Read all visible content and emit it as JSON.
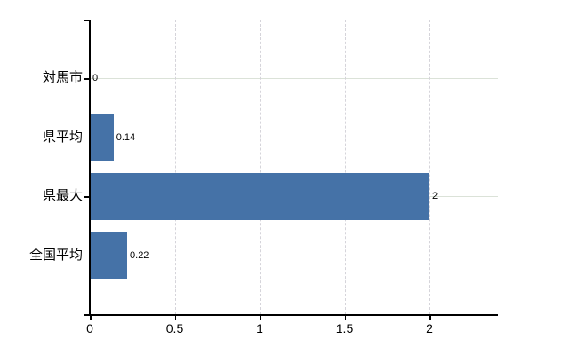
{
  "chart_data": {
    "type": "bar",
    "orientation": "horizontal",
    "title": "",
    "xlabel": "",
    "ylabel": "",
    "categories": [
      "対馬市",
      "県平均",
      "県最大",
      "全国平均"
    ],
    "values": [
      0,
      0.14,
      2,
      0.22
    ],
    "value_labels": [
      "0",
      "0.14",
      "2",
      "0.22"
    ],
    "x_ticks": [
      {
        "value": 0,
        "label": "0"
      },
      {
        "value": 0.5,
        "label": "0.5"
      },
      {
        "value": 1,
        "label": "1"
      },
      {
        "value": 1.5,
        "label": "1.5"
      },
      {
        "value": 2,
        "label": "2"
      }
    ],
    "xlim": [
      0,
      2.4
    ],
    "grid": "on",
    "legend": "none",
    "colors": {
      "bar": "#4572a7",
      "h_gridline": "#dbe2d8",
      "v_gridline": "#d5d4da",
      "top_border": "#d5d4da",
      "axis": "#000000",
      "text": "#000000",
      "background": "#ffffff"
    }
  }
}
